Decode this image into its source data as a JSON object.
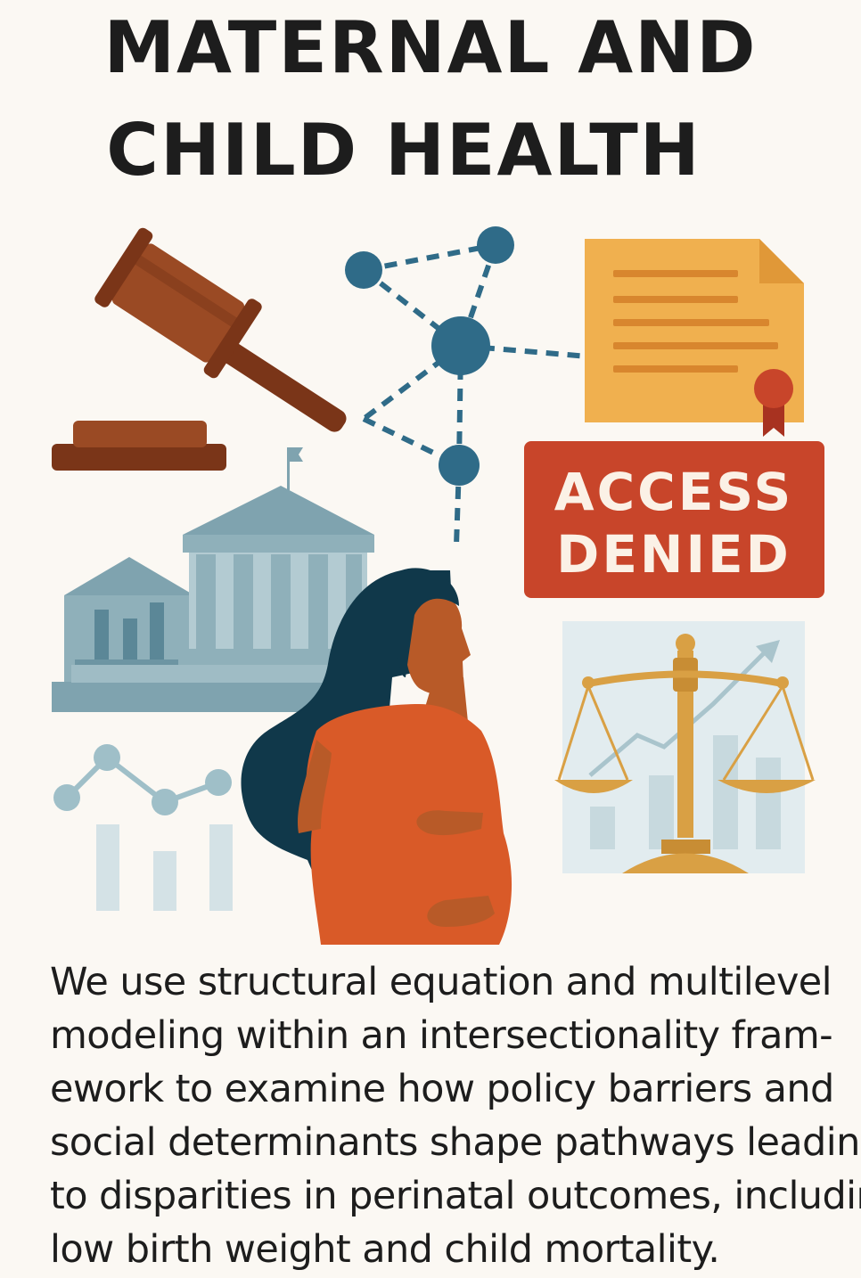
{
  "title": {
    "line1": "MATERNAL AND",
    "line2": "CHILD HEALTH"
  },
  "badge": {
    "line1": "ACCESS",
    "line2": "DENIED"
  },
  "description": {
    "lines": [
      "We use structural equation and multilevel",
      "modeling within an intersectionality fram-",
      "ework to examine how policy barriers and",
      "social determinants shape pathways leading",
      "to disparities in perinatal outcomes, including",
      "low birth weight and child mortality."
    ]
  },
  "icons": [
    "gavel-icon",
    "network-icon",
    "certificate-icon",
    "access-denied-badge",
    "government-building-icon",
    "pregnant-woman-illustration",
    "line-chart-icon",
    "justice-scale-icon"
  ],
  "colors": {
    "background": "#fbf8f3",
    "brown": "#8a4020",
    "teal_blue": "#2f6b88",
    "document_yellow": "#f0b04f",
    "badge_red": "#c8452a",
    "building_blue": "#8fb0ba",
    "shirt_orange": "#d95a28",
    "scale_gold": "#d9a044"
  }
}
